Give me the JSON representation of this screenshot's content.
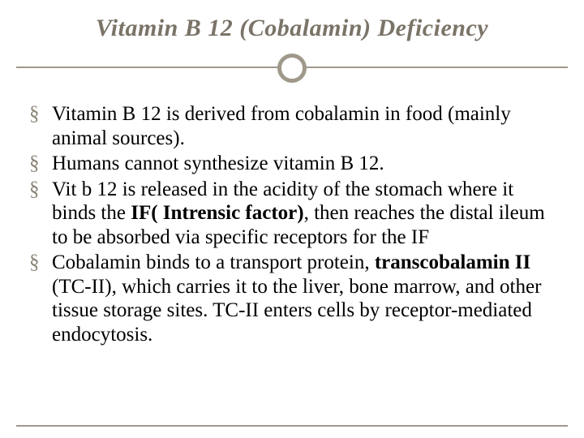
{
  "slide": {
    "title": "Vitamin B 12 (Cobalamin) Deficiency",
    "title_color": "#7a7367",
    "title_fontsize": 30,
    "rule_color": "#a0998b",
    "rule_width": 2,
    "circle_border_color": "#a0998b",
    "circle_border_width": 5,
    "circle_diameter": 36,
    "footer_rule_color": "#a0998b",
    "footer_rule_width": 2,
    "bullet_glyph": "§",
    "bullet_color": "#8a8376",
    "body_color": "#000000",
    "body_fontsize": 25,
    "bullets": [
      {
        "html": "Vitamin B 12 is derived from cobalamin in food (mainly animal sources)."
      },
      {
        "html": "Humans cannot synthesize vitamin B 12."
      },
      {
        "html": "Vit b 12 is released in the acidity of the stomach where it binds  the <b>IF( Intrensic factor)</b>, then reaches the distal ileum to be absorbed via specific receptors for the IF"
      },
      {
        "html": "Cobalamin binds to a transport protein, <b>transcobalamin II</b> (TC-II), which carries it to the liver, bone marrow, and other tissue storage sites. TC-II enters cells by receptor-mediated endocytosis."
      }
    ]
  }
}
